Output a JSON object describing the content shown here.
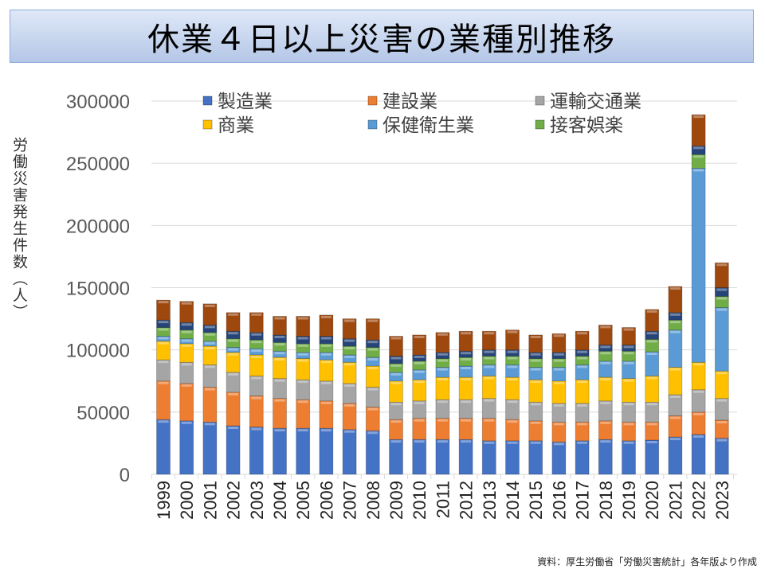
{
  "chart_data": {
    "type": "bar",
    "stacked": true,
    "title": "休業４日以上災害の業種別推移",
    "ylabel": "労働災害発生件数（人）",
    "xlabel": "",
    "ylim": [
      0,
      300000
    ],
    "yticks": [
      0,
      50000,
      100000,
      150000,
      200000,
      250000,
      300000
    ],
    "grid": true,
    "legend_position": "top",
    "categories": [
      "1999",
      "2000",
      "2001",
      "2002",
      "2003",
      "2004",
      "2005",
      "2006",
      "2007",
      "2008",
      "2009",
      "2010",
      "2011",
      "2012",
      "2013",
      "2014",
      "2015",
      "2016",
      "2017",
      "2018",
      "2019",
      "2020",
      "2021",
      "2022",
      "2023"
    ],
    "series": [
      {
        "name": "製造業",
        "color": "#4472c4",
        "legend": true,
        "values": [
          44000,
          43000,
          42000,
          39000,
          38000,
          37000,
          37000,
          37000,
          36000,
          35000,
          28000,
          28000,
          28000,
          28000,
          27000,
          27000,
          27000,
          26000,
          27000,
          28000,
          27000,
          27500,
          30000,
          32000,
          29000
        ]
      },
      {
        "name": "建設業",
        "color": "#ed7d31",
        "legend": true,
        "values": [
          31000,
          30000,
          28000,
          27000,
          25000,
          24000,
          23000,
          22000,
          21000,
          19000,
          16000,
          17000,
          17000,
          17000,
          18000,
          17000,
          16000,
          16000,
          15000,
          15000,
          15000,
          14500,
          17000,
          18000,
          14500
        ]
      },
      {
        "name": "運輸交通業",
        "color": "#a5a5a5",
        "legend": true,
        "values": [
          17000,
          17000,
          18000,
          16000,
          16000,
          16000,
          16000,
          16000,
          16000,
          16000,
          14000,
          14000,
          15000,
          15000,
          16000,
          16000,
          15000,
          15000,
          15000,
          16000,
          16000,
          16000,
          17000,
          18000,
          17500
        ]
      },
      {
        "name": "商業",
        "color": "#ffc000",
        "legend": true,
        "values": [
          15000,
          15000,
          15000,
          16000,
          17000,
          17000,
          17000,
          17000,
          17000,
          17000,
          17000,
          17000,
          18000,
          18000,
          18000,
          18000,
          18000,
          18000,
          19000,
          19000,
          19000,
          21000,
          22000,
          22000,
          22000
        ]
      },
      {
        "name": "保健衛生業",
        "color": "#5b9bd5",
        "legend": true,
        "values": [
          4000,
          4000,
          4000,
          4000,
          5000,
          5000,
          5000,
          6000,
          6000,
          7000,
          7000,
          8000,
          8000,
          9000,
          9000,
          10000,
          10000,
          11000,
          12000,
          13000,
          14000,
          19500,
          30000,
          156000,
          51000
        ]
      },
      {
        "name": "接客娯楽",
        "color": "#70ad47",
        "legend": true,
        "values": [
          7000,
          7000,
          7000,
          7000,
          7000,
          7000,
          7000,
          7000,
          7000,
          8000,
          7000,
          7000,
          7000,
          7000,
          7000,
          7000,
          7000,
          7000,
          7000,
          8000,
          8000,
          10000,
          8000,
          11000,
          9000
        ]
      },
      {
        "name": "",
        "color": "#264478",
        "legend": false,
        "values": [
          6000,
          6000,
          6000,
          6000,
          6000,
          6000,
          6000,
          6000,
          6000,
          6000,
          6000,
          5000,
          5000,
          5000,
          5000,
          5000,
          5000,
          5000,
          5000,
          5000,
          5000,
          6500,
          6000,
          7000,
          7000
        ]
      },
      {
        "name": "",
        "color": "#9e480e",
        "legend": false,
        "values": [
          16000,
          17000,
          17000,
          15000,
          16000,
          15000,
          16000,
          17000,
          16000,
          17000,
          16000,
          16000,
          16000,
          16000,
          15000,
          16000,
          14000,
          15000,
          15000,
          16000,
          14000,
          17500,
          21000,
          25000,
          20000
        ]
      }
    ],
    "source": "資料：厚生労働省「労働災害統計」各年版より作成"
  }
}
